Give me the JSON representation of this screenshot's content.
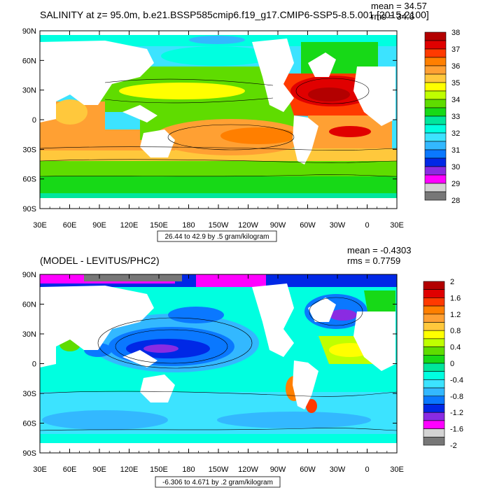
{
  "chart_data": [
    {
      "type": "heatmap",
      "title": "SALINITY at z=  95.0m, b.e21.BSSP585cmip6.f19_g17.CMIP6-SSP5-8.5.001 [2015-2100]",
      "stats": {
        "mean": "mean = 34.57",
        "rms": "rms = 34.6"
      },
      "x_ticks": [
        "30E",
        "60E",
        "90E",
        "120E",
        "150E",
        "180",
        "150W",
        "120W",
        "90W",
        "60W",
        "30W",
        "0",
        "30E"
      ],
      "y_ticks": [
        "90N",
        "60N",
        "30N",
        "0",
        "30S",
        "60S",
        "90S"
      ],
      "xlim": [
        30,
        390
      ],
      "ylim": [
        -90,
        90
      ],
      "colorbar": {
        "labels": [
          "38",
          "37",
          "36",
          "35",
          "34",
          "33",
          "32",
          "31",
          "30",
          "29",
          "28"
        ],
        "colors": [
          "#b30000",
          "#e00000",
          "#ff3a00",
          "#ff7f00",
          "#ffa033",
          "#ffc83c",
          "#ffff00",
          "#bfff00",
          "#5fdc00",
          "#17d917",
          "#00e69c",
          "#00ffe0",
          "#3ce3ff",
          "#33b8ff",
          "#0a78ff",
          "#0028e6",
          "#8a2be2",
          "#ff00ff",
          "#d3d3d3",
          "#777777"
        ]
      },
      "range_label": "26.44 to 42.9 by .5 gram/kilogram"
    },
    {
      "type": "heatmap",
      "title": "(MODEL - LEVITUS/PHC2)",
      "stats": {
        "mean": "mean = -0.4303",
        "rms": "rms = 0.7759"
      },
      "x_ticks": [
        "30E",
        "60E",
        "90E",
        "120E",
        "150E",
        "180",
        "150W",
        "120W",
        "90W",
        "60W",
        "30W",
        "0",
        "30E"
      ],
      "y_ticks": [
        "90N",
        "60N",
        "30N",
        "0",
        "30S",
        "60S",
        "90S"
      ],
      "xlim": [
        30,
        390
      ],
      "ylim": [
        -90,
        90
      ],
      "colorbar": {
        "labels": [
          "2",
          "1.6",
          "1.2",
          "0.8",
          "0.4",
          "0",
          "-0.4",
          "-0.8",
          "-1.2",
          "-1.6",
          "-2"
        ],
        "colors": [
          "#b30000",
          "#e00000",
          "#ff3a00",
          "#ff7f00",
          "#ffa033",
          "#ffc83c",
          "#ffff00",
          "#bfff00",
          "#5fdc00",
          "#17d917",
          "#00e69c",
          "#00ffe0",
          "#3ce3ff",
          "#33b8ff",
          "#0a78ff",
          "#0028e6",
          "#8a2be2",
          "#ff00ff",
          "#d3d3d3",
          "#777777"
        ]
      },
      "range_label": "-6.306 to 4.671 by .2 gram/kilogram"
    }
  ]
}
